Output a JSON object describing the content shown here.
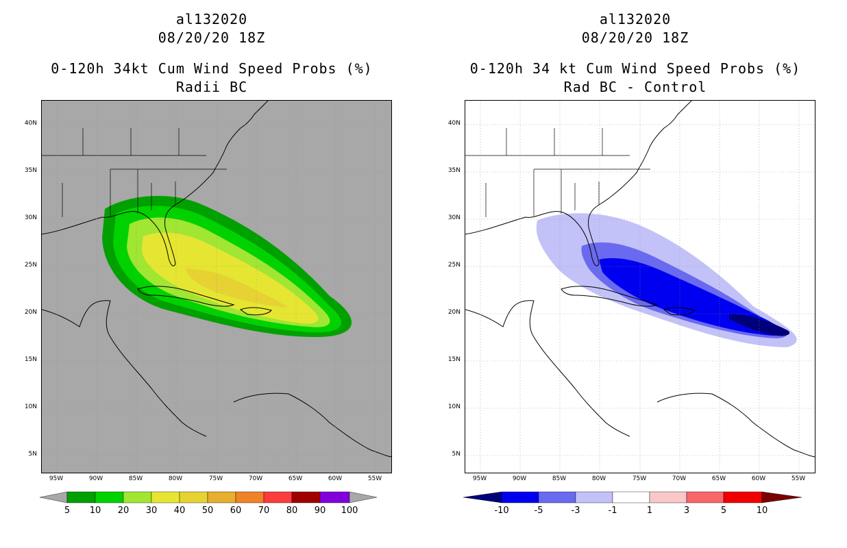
{
  "left": {
    "storm_id": "al132020",
    "datetime": "08/20/20 18Z",
    "title": "0-120h 34kt Cum Wind Speed Probs (%)",
    "subtitle": "Radii BC",
    "background_color": "#a8a8a8",
    "colorbar": {
      "labels": [
        "5",
        "10",
        "20",
        "30",
        "40",
        "50",
        "60",
        "70",
        "80",
        "90",
        "100"
      ],
      "colors": [
        "#a8a8a8",
        "#00a000",
        "#00d200",
        "#a0e632",
        "#e6e632",
        "#e6d232",
        "#e6af2d",
        "#f08228",
        "#fa3c3c",
        "#a00000",
        "#8200dc",
        "#a8a8a8"
      ]
    },
    "probability_field": {
      "max_value_pct": 40,
      "centroid_lon": -76,
      "centroid_lat": 23,
      "orientation": "WNW-ESE"
    }
  },
  "right": {
    "storm_id": "al132020",
    "datetime": "08/20/20 18Z",
    "title": "0-120h 34 kt Cum Wind Speed Probs (%)",
    "subtitle": "Rad BC - Control",
    "background_color": "#ffffff",
    "colorbar": {
      "labels": [
        "-10",
        "-5",
        "-3",
        "-1",
        "1",
        "3",
        "5",
        "10"
      ],
      "colors": [
        "#00007a",
        "#0000f0",
        "#6a6af0",
        "#c2c2f8",
        "#ffffff",
        "#fac8c8",
        "#f86868",
        "#f00000",
        "#7a0000"
      ]
    },
    "difference_field": {
      "min_value_pct": -10,
      "centroid_lon": -71,
      "centroid_lat": 22,
      "orientation": "WNW-ESE"
    }
  },
  "map": {
    "lon_range": [
      -97,
      -53
    ],
    "lat_range": [
      3,
      42.5
    ],
    "lon_ticks": [
      "95W",
      "90W",
      "85W",
      "80W",
      "75W",
      "70W",
      "65W",
      "60W",
      "55W"
    ],
    "lat_ticks": [
      "5N",
      "10N",
      "15N",
      "20N",
      "25N",
      "30N",
      "35N",
      "40N"
    ]
  }
}
